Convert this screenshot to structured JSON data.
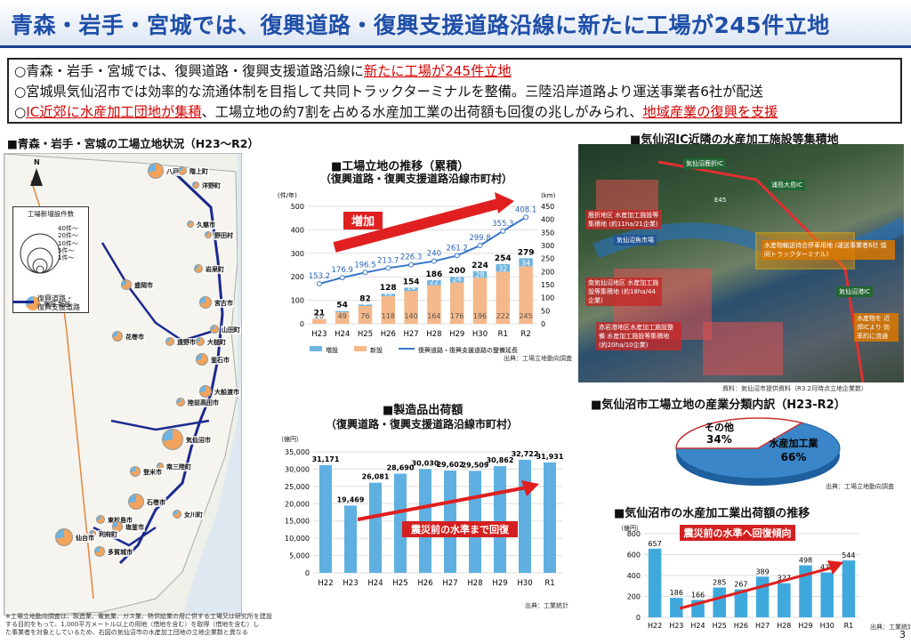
{
  "title": "青森・岩手・宮城では、復興道路・復興支援道路沿線に新たに工場が245件立地",
  "summary": {
    "l1a": "○青森・岩手・宮城では、復興道路・復興支援道路沿線に",
    "l1b": "新たに工場が245件立地",
    "l2": "○宮城県気仙沼市では効率的な流通体制を目指して共同トラックターミナルを整備。三陸沿岸道路より運送事業者6社が配送",
    "l3a": "○",
    "l3b": "IC近郊に水産加工団地が集積",
    "l3c": "、工場立地の約7割を占める水産加工業の出荷額も回復の兆しがみられ、",
    "l3d": "地域産業の復興を支援"
  },
  "map": {
    "heading": "■青森・岩手・宮城の工場立地状況（H23～R2）",
    "legend_title": "工場新増設件数",
    "legend_items": [
      "40件～",
      "20件～",
      "10件～",
      "5件～",
      "1件～"
    ],
    "legend_sub": "増設 新設",
    "road_label": "復興道路・\n復興支援道路",
    "north": "N",
    "cities": [
      {
        "name": "八戸市"
      },
      {
        "name": "階上町"
      },
      {
        "name": "洋野町"
      },
      {
        "name": "久慈市"
      },
      {
        "name": "野田村"
      },
      {
        "name": "岩泉町"
      },
      {
        "name": "宮古市"
      },
      {
        "name": "盛岡市"
      },
      {
        "name": "山田町"
      },
      {
        "name": "花巻市"
      },
      {
        "name": "遠野市"
      },
      {
        "name": "大槌町"
      },
      {
        "name": "釜石市"
      },
      {
        "name": "大船渡市"
      },
      {
        "name": "陸前高田市"
      },
      {
        "name": "気仙沼市"
      },
      {
        "name": "南三陸町"
      },
      {
        "name": "登米市"
      },
      {
        "name": "石巻市"
      },
      {
        "name": "女川町"
      },
      {
        "name": "東松島市"
      },
      {
        "name": "塩釜市"
      },
      {
        "name": "利府町"
      },
      {
        "name": "仙台市"
      },
      {
        "name": "多賀城市"
      }
    ],
    "footnote1": "※工場立地動向調査は、製造業、電気業、ガス業、熱供給業の用に供する工場又は研究所を建設",
    "footnote2": "する目的をもって、1,000平方メートル以上の用地（借地を含む）を取得（借地を含む）し",
    "footnote3": "た事業者を対象としているため、右図の気仙沼市の水産加工団地の立地企業数と異なる"
  },
  "chart1": {
    "heading": "■工場立地の推移（累積）",
    "subheading": "（復興道路・復興支援道路沿線市町村）",
    "yunit": "(件/年)",
    "y2unit": "(km)",
    "arrow": "増加",
    "source": "出典：工場立地動向調査",
    "legend": [
      "増設",
      "新設",
      "復興道路・復興支援道路の整備延長"
    ]
  },
  "chart2": {
    "heading": "■製造品出荷額",
    "subheading": "（復興道路・復興支援道路沿線市町村）",
    "yunit": "（億円）",
    "arrow": "震災前の水準まで回復",
    "source": "出典：工業統計"
  },
  "photo": {
    "heading": "■気仙沼IC近隣の水産加工施設等集積地",
    "labels": [
      "気仙沼鹿折IC",
      "浦島大島IC",
      "気仙沼港IC",
      "E45",
      "鹿折地区 水産加工施設等集積地 (約11ha/21企業)",
      "気仙沼魚市場",
      "水産物輸送待合停車用地 (運送事業者6社 協同トラックターミナル)",
      "南気仙沼地区 水産加工施設等集積地 (約18ha/44企業)",
      "赤岩港地区水産加工施設整備 水産加工施設等集積地 (約20ha/10企業)",
      "水産物を 近郊ICより 効率的に流通"
    ],
    "source": "資料：気仙沼市提供資料（R3.2月時点立地企業数）"
  },
  "chart3": {
    "heading": "■気仙沼市工場立地の産業分類内訳（H23-R2）",
    "source": "出典：工場立地動向調査"
  },
  "chart4": {
    "heading": "■気仙沼市の水産加工業出荷額の推移",
    "yunit": "（億円）",
    "arrow": "震災前の水準へ回復傾向",
    "source": "出典：工業統計"
  },
  "page": "3",
  "chart_data": [
    {
      "type": "bar",
      "stacked": true,
      "categories": [
        "H23",
        "H24",
        "H25",
        "H26",
        "H27",
        "H28",
        "H29",
        "H30",
        "R1",
        "R2"
      ],
      "series": [
        {
          "name": "増設",
          "values": [
            1,
            5,
            6,
            10,
            14,
            22,
            24,
            28,
            32,
            34
          ]
        },
        {
          "name": "新設",
          "values": [
            20,
            49,
            76,
            118,
            140,
            164,
            176,
            196,
            222,
            245
          ]
        }
      ],
      "totals": [
        21,
        54,
        82,
        128,
        154,
        186,
        200,
        224,
        254,
        279
      ],
      "line": {
        "name": "復興道路・復興支援道路の整備延長",
        "values": [
          153.2,
          176.9,
          196.5,
          213.7,
          226.3,
          240,
          261.2,
          299.8,
          355.3,
          408.1
        ]
      },
      "ylim": [
        0,
        500
      ],
      "y2lim": [
        0,
        450
      ],
      "ylabel": "(件/年)",
      "y2label": "(km)",
      "colors": {
        "増設": "#6fb4e0",
        "新設": "#f5b88a",
        "line": "#3a78c9"
      }
    },
    {
      "type": "bar",
      "categories": [
        "H22",
        "H23",
        "H24",
        "H25",
        "H26",
        "H27",
        "H28",
        "H29",
        "H30",
        "R1"
      ],
      "values": [
        31171,
        19469,
        26081,
        28690,
        30030,
        29602,
        29509,
        30862,
        32722,
        31931
      ],
      "ylim": [
        0,
        35000
      ],
      "ylabel": "（億円）",
      "color": "#5fb0e0"
    },
    {
      "type": "pie",
      "labels": [
        "水産加工業",
        "その他"
      ],
      "values": [
        66,
        34
      ],
      "colors": [
        "#3a86c8",
        "#ffffff"
      ]
    },
    {
      "type": "bar",
      "categories": [
        "H22",
        "H23",
        "H24",
        "H25",
        "H26",
        "H27",
        "H28",
        "H29",
        "H30",
        "R1"
      ],
      "values": [
        657,
        186,
        166,
        285,
        267,
        389,
        327,
        498,
        429,
        544
      ],
      "ylim": [
        0,
        800
      ],
      "ylabel": "（億円）",
      "color": "#3fa9de"
    }
  ]
}
